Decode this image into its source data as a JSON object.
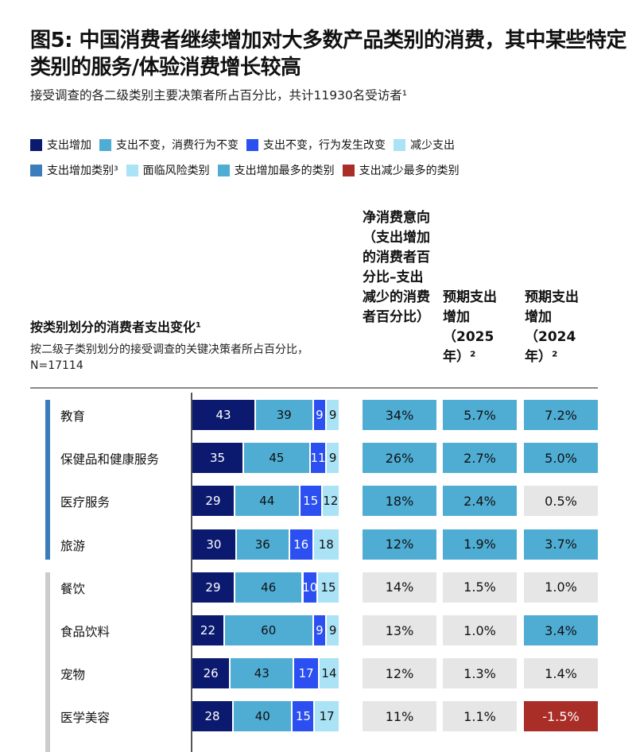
{
  "title": "图5: 中国消费者继续增加对大多数产品类别的消费，其中某些特定类别的服务/体验消费增长较高",
  "subtitle": "接受调查的各二级类别主要决策者所占百分比，共计11930名受访者¹",
  "legend_row1": [
    {
      "label": "支出增加",
      "color": "#0b1a6e"
    },
    {
      "label": "支出不变，消费行为不变",
      "color": "#4fadd4"
    },
    {
      "label": "支出不变，行为发生改变",
      "color": "#2b4ff0"
    },
    {
      "label": "减少支出",
      "color": "#a9e3f5"
    }
  ],
  "legend_row2": [
    {
      "label": "支出增加类别³",
      "color": "#3b7dbb"
    },
    {
      "label": "面临风险类别",
      "color": "#a9e3f5"
    },
    {
      "label": "支出增加最多的类别",
      "color": "#4fadd4"
    },
    {
      "label": "支出减少最多的类别",
      "color": "#aa2e28"
    }
  ],
  "left_header": {
    "title": "按类别划分的消费者支出变化¹",
    "subtitle": "按二级子类别划分的接受调查的关键决策者所占百分比，N=17114"
  },
  "col_headers": [
    "净消费意向（支出增加的消费者百分比–支出减少的消费者百分比）",
    "预期支出增加（2025年）²",
    "预期支出增加（2024年）²"
  ],
  "colors": {
    "group_increase": "#3b7dbb",
    "group_other": "#cccccc",
    "cell_highlight": "#4fadd4",
    "cell_neutral": "#e6e6e6",
    "cell_negative": "#aa2e28"
  },
  "chart_data": {
    "type": "bar",
    "stacked": true,
    "orientation": "horizontal",
    "series_names": [
      "支出增加",
      "支出不变，消费行为不变",
      "支出不变，行为发生改变",
      "减少支出"
    ],
    "rows": [
      {
        "category": "教育",
        "group": "increase",
        "values": [
          43,
          39,
          9,
          9
        ],
        "net": "34%",
        "exp2025": "5.7%",
        "exp2024": "7.2%",
        "hl": [
          "high",
          "high",
          "high"
        ]
      },
      {
        "category": "保健品和健康服务",
        "group": "increase",
        "values": [
          35,
          45,
          11,
          9
        ],
        "net": "26%",
        "exp2025": "2.7%",
        "exp2024": "5.0%",
        "hl": [
          "high",
          "high",
          "high"
        ]
      },
      {
        "category": "医疗服务",
        "group": "increase",
        "values": [
          29,
          44,
          15,
          12
        ],
        "net": "18%",
        "exp2025": "2.4%",
        "exp2024": "0.5%",
        "hl": [
          "high",
          "high",
          "none"
        ]
      },
      {
        "category": "旅游",
        "group": "increase",
        "values": [
          30,
          36,
          16,
          18
        ],
        "net": "12%",
        "exp2025": "1.9%",
        "exp2024": "3.7%",
        "hl": [
          "high",
          "high",
          "high"
        ]
      },
      {
        "category": "餐饮",
        "group": "other",
        "values": [
          29,
          46,
          10,
          15
        ],
        "net": "14%",
        "exp2025": "1.5%",
        "exp2024": "1.0%",
        "hl": [
          "none",
          "none",
          "none"
        ]
      },
      {
        "category": "食品饮料",
        "group": "other",
        "values": [
          22,
          60,
          9,
          9
        ],
        "net": "13%",
        "exp2025": "1.0%",
        "exp2024": "3.4%",
        "hl": [
          "none",
          "none",
          "high"
        ]
      },
      {
        "category": "宠物",
        "group": "other",
        "values": [
          26,
          43,
          17,
          14
        ],
        "net": "12%",
        "exp2025": "1.3%",
        "exp2024": "1.4%",
        "hl": [
          "none",
          "none",
          "none"
        ]
      },
      {
        "category": "医学美容",
        "group": "other",
        "values": [
          28,
          40,
          15,
          17
        ],
        "net": "11%",
        "exp2025": "1.1%",
        "exp2024": "-1.5%",
        "hl": [
          "none",
          "none",
          "low"
        ]
      }
    ]
  }
}
